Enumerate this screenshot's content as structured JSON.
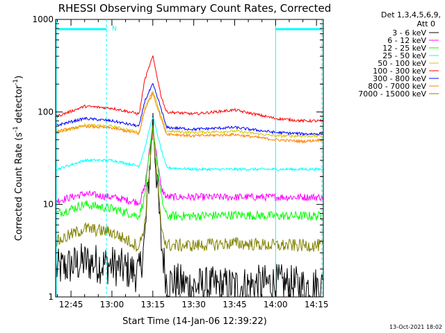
{
  "chart_data": {
    "type": "line",
    "title": "RHESSI Observing Summary Count Rates, Corrected",
    "xlabel": "Start Time (14-Jan-06 12:39:22)",
    "ylabel_prefix": "Corrected Count Rate (s",
    "ylabel_mid": " detector",
    "ylabel_suffix": ")",
    "ylabel_exp": "-1",
    "yscale": "log",
    "ylim": [
      1,
      1000
    ],
    "xlim": [
      "12:39:22",
      "14:17:30"
    ],
    "x_ticks": [
      "12:45",
      "13:00",
      "13:15",
      "13:30",
      "13:45",
      "14:00",
      "14:15"
    ],
    "y_ticks": [
      "1",
      "10",
      "100",
      "1000"
    ],
    "legend_header_1": "Det 1,3,4,5,6,9,",
    "legend_header_2": "Att 0",
    "footer_date": "13-Oct-2021 18:02",
    "night_label": "N",
    "grid": false,
    "series": [
      {
        "name": "3 - 6 keV",
        "color": "#000000",
        "x": [
          "12:40",
          "12:50",
          "13:00",
          "13:10",
          "13:12",
          "13:15",
          "13:18",
          "13:20",
          "13:30",
          "13:45",
          "14:00",
          "14:10",
          "14:17"
        ],
        "y": [
          2,
          2.4,
          2.2,
          1.8,
          4,
          85,
          4,
          1.5,
          1.3,
          1.3,
          1.4,
          1.3,
          1.3
        ]
      },
      {
        "name": "6 - 12 keV",
        "color": "#ff00ff",
        "x": [
          "12:40",
          "12:50",
          "13:00",
          "13:10",
          "13:12",
          "13:15",
          "13:18",
          "13:20",
          "13:30",
          "13:45",
          "14:00",
          "14:10",
          "14:17"
        ],
        "y": [
          11,
          13,
          12,
          10.5,
          15,
          70,
          15,
          12,
          12,
          12,
          12,
          12,
          12
        ]
      },
      {
        "name": "12 - 25 keV",
        "color": "#00ff00",
        "x": [
          "12:40",
          "12:50",
          "13:00",
          "13:10",
          "13:12",
          "13:15",
          "13:18",
          "13:20",
          "13:30",
          "13:45",
          "14:00",
          "14:10",
          "14:17"
        ],
        "y": [
          8,
          10,
          9,
          7.5,
          12,
          72,
          12,
          7.5,
          7.5,
          7.7,
          7.5,
          7.5,
          7.5
        ]
      },
      {
        "name": "25 - 50 keV",
        "color": "#00ffff",
        "x": [
          "12:40",
          "12:50",
          "13:00",
          "13:10",
          "13:12",
          "13:15",
          "13:18",
          "13:20",
          "13:30",
          "13:45",
          "14:00",
          "14:10",
          "14:17"
        ],
        "y": [
          24,
          30,
          30,
          26,
          40,
          90,
          40,
          25,
          24,
          24,
          24,
          24,
          24
        ]
      },
      {
        "name": "50 - 100 keV",
        "color": "#d4c800",
        "x": [
          "12:40",
          "12:50",
          "13:00",
          "13:10",
          "13:12",
          "13:15",
          "13:18",
          "13:20",
          "13:30",
          "13:45",
          "14:00",
          "14:10",
          "14:17"
        ],
        "y": [
          60,
          72,
          70,
          60,
          110,
          170,
          90,
          62,
          60,
          62,
          55,
          55,
          55
        ]
      },
      {
        "name": "100 - 300 keV",
        "color": "#ff0000",
        "x": [
          "12:40",
          "12:50",
          "13:00",
          "13:10",
          "13:12",
          "13:15",
          "13:18",
          "13:20",
          "13:30",
          "13:45",
          "14:00",
          "14:10",
          "14:17"
        ],
        "y": [
          90,
          115,
          110,
          95,
          220,
          400,
          150,
          100,
          95,
          105,
          85,
          80,
          80
        ]
      },
      {
        "name": "300 - 800 keV",
        "color": "#0000ff",
        "x": [
          "12:40",
          "12:50",
          "13:00",
          "13:10",
          "13:12",
          "13:15",
          "13:18",
          "13:20",
          "13:30",
          "13:45",
          "14:00",
          "14:10",
          "14:17"
        ],
        "y": [
          72,
          85,
          80,
          70,
          130,
          200,
          110,
          68,
          65,
          68,
          60,
          58,
          58
        ]
      },
      {
        "name": "800 - 7000 keV",
        "color": "#ff8000",
        "x": [
          "12:40",
          "12:50",
          "13:00",
          "13:10",
          "13:12",
          "13:15",
          "13:18",
          "13:20",
          "13:30",
          "13:45",
          "14:00",
          "14:10",
          "14:17"
        ],
        "y": [
          62,
          70,
          67,
          58,
          105,
          160,
          85,
          58,
          55,
          57,
          50,
          48,
          50
        ]
      },
      {
        "name": "7000 - 15000 keV",
        "color": "#808000",
        "x": [
          "12:40",
          "12:50",
          "13:00",
          "13:10",
          "13:12",
          "13:15",
          "13:18",
          "13:20",
          "13:30",
          "13:45",
          "14:00",
          "14:10",
          "14:17"
        ],
        "y": [
          4,
          5.5,
          5,
          3.5,
          6,
          65,
          6,
          3.6,
          3.6,
          3.8,
          3.6,
          3.6,
          3.6
        ]
      }
    ]
  }
}
